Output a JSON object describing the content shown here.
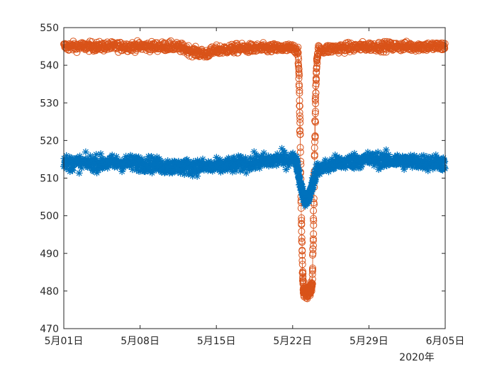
{
  "chart_data": {
    "type": "scatter",
    "title": "",
    "xlabel": "",
    "ylabel": "",
    "x_tick_labels": [
      "5月01日",
      "5月08日",
      "5月15日",
      "5月22日",
      "5月29日",
      "6月05日"
    ],
    "x_tick_days": [
      1,
      8,
      15,
      22,
      29,
      36
    ],
    "x_secondary_label": "2020年",
    "xlim_days": [
      1,
      36
    ],
    "y_ticks": [
      470,
      480,
      490,
      500,
      510,
      520,
      530,
      540,
      550
    ],
    "ylim": [
      470,
      550
    ],
    "grid": false,
    "legend": "none",
    "series": [
      {
        "marker": "circle",
        "color": "#D95319",
        "connected": true,
        "baseline": [
          [
            1,
            545
          ],
          [
            4,
            545
          ],
          [
            8,
            545
          ],
          [
            11,
            545
          ],
          [
            12,
            544.5
          ],
          [
            13,
            543.5
          ],
          [
            14,
            543
          ],
          [
            15,
            544
          ],
          [
            17,
            544.5
          ],
          [
            20,
            544.5
          ],
          [
            22,
            544.5
          ],
          [
            22.5,
            544
          ]
        ],
        "dip": [
          [
            22.5,
            544
          ],
          [
            22.6,
            535
          ],
          [
            22.7,
            520
          ],
          [
            22.8,
            500
          ],
          [
            22.9,
            485
          ],
          [
            23.0,
            480
          ],
          [
            23.3,
            479.5
          ],
          [
            23.6,
            480
          ],
          [
            23.8,
            482
          ],
          [
            23.9,
            495
          ],
          [
            24.0,
            515
          ],
          [
            24.1,
            530
          ],
          [
            24.2,
            540
          ],
          [
            24.3,
            544
          ]
        ],
        "recovery": [
          [
            24.3,
            544
          ],
          [
            26,
            544.5
          ],
          [
            29,
            545
          ],
          [
            32,
            545
          ],
          [
            36,
            545
          ]
        ],
        "noise": 1.2
      },
      {
        "marker": "asterisk",
        "color": "#0072BD",
        "connected": false,
        "baseline": [
          [
            1,
            514
          ],
          [
            4,
            514
          ],
          [
            8,
            514
          ],
          [
            11,
            513
          ],
          [
            15,
            513
          ],
          [
            18,
            514
          ],
          [
            21,
            515
          ],
          [
            22.3,
            515
          ]
        ],
        "dip": [
          [
            22.3,
            515
          ],
          [
            22.6,
            510
          ],
          [
            22.9,
            506
          ],
          [
            23.2,
            504
          ],
          [
            23.5,
            505
          ],
          [
            23.8,
            508
          ],
          [
            24.1,
            511
          ]
        ],
        "recovery": [
          [
            24.1,
            512
          ],
          [
            26,
            514
          ],
          [
            29,
            515
          ],
          [
            32,
            514.5
          ],
          [
            36,
            514
          ]
        ],
        "noise": 2.0
      }
    ]
  }
}
